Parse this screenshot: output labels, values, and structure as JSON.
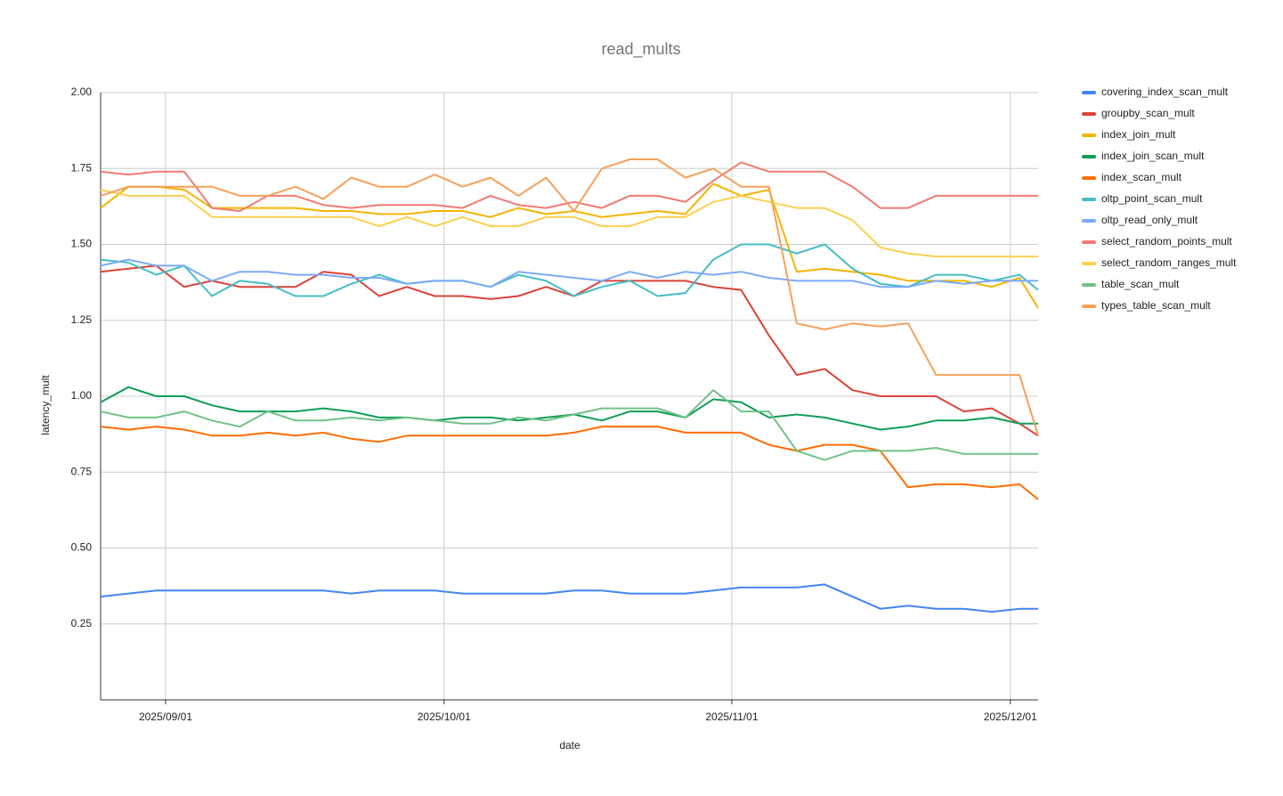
{
  "chart_data": {
    "type": "line",
    "title": "read_mults",
    "x_label": "date",
    "y_label": "latency_mult",
    "x": [
      "2025/08/25",
      "2025/08/28",
      "2025/08/31",
      "2025/09/03",
      "2025/09/06",
      "2025/09/09",
      "2025/09/12",
      "2025/09/15",
      "2025/09/18",
      "2025/09/21",
      "2025/09/24",
      "2025/09/27",
      "2025/09/30",
      "2025/10/03",
      "2025/10/06",
      "2025/10/09",
      "2025/10/12",
      "2025/10/15",
      "2025/10/18",
      "2025/10/21",
      "2025/10/24",
      "2025/10/27",
      "2025/10/30",
      "2025/11/02",
      "2025/11/05",
      "2025/11/08",
      "2025/11/11",
      "2025/11/14",
      "2025/11/17",
      "2025/11/20",
      "2025/11/23",
      "2025/11/26",
      "2025/11/29",
      "2025/12/02",
      "2025/12/04"
    ],
    "xlim": [
      "2025/08/25",
      "2025/12/04"
    ],
    "xticks": [
      "2025/09/01",
      "2025/10/01",
      "2025/11/01",
      "2025/12/01"
    ],
    "ylim": [
      0,
      2
    ],
    "yticks": [
      0.25,
      {
        "value": 0.5,
        "label": "0.50"
      },
      0.75,
      {
        "value": 1,
        "label": "1.00"
      },
      1.25,
      {
        "value": 1.5,
        "label": "1.50"
      },
      1.75,
      {
        "value": 2,
        "label": "2.00"
      }
    ],
    "grid": true,
    "legend": "right",
    "series": [
      {
        "name": "covering_index_scan_mult",
        "color": "#4285f4",
        "values": [
          0.34,
          0.35,
          0.36,
          0.36,
          0.36,
          0.36,
          0.36,
          0.36,
          0.36,
          0.35,
          0.36,
          0.36,
          0.36,
          0.35,
          0.35,
          0.35,
          0.35,
          0.36,
          0.36,
          0.35,
          0.35,
          0.35,
          0.36,
          0.37,
          0.37,
          0.37,
          0.38,
          0.34,
          0.3,
          0.31,
          0.3,
          0.3,
          0.29,
          0.3,
          0.3
        ]
      },
      {
        "name": "groupby_scan_mult",
        "color": "#db4437",
        "values": [
          1.41,
          1.42,
          1.43,
          1.36,
          1.38,
          1.36,
          1.36,
          1.36,
          1.41,
          1.4,
          1.33,
          1.36,
          1.33,
          1.33,
          1.32,
          1.33,
          1.36,
          1.33,
          1.38,
          1.38,
          1.38,
          1.38,
          1.36,
          1.35,
          1.2,
          1.07,
          1.09,
          1.02,
          1.0,
          1.0,
          1.0,
          0.95,
          0.96,
          0.91,
          0.87
        ]
      },
      {
        "name": "index_join_mult",
        "color": "#f4b400",
        "values": [
          1.62,
          1.69,
          1.69,
          1.68,
          1.62,
          1.62,
          1.62,
          1.62,
          1.61,
          1.61,
          1.6,
          1.6,
          1.61,
          1.61,
          1.59,
          1.62,
          1.6,
          1.61,
          1.59,
          1.6,
          1.61,
          1.6,
          1.7,
          1.66,
          1.68,
          1.41,
          1.42,
          1.41,
          1.4,
          1.38,
          1.38,
          1.38,
          1.36,
          1.39,
          1.29
        ]
      },
      {
        "name": "index_join_scan_mult",
        "color": "#0f9d58",
        "values": [
          0.98,
          1.03,
          1.0,
          1.0,
          0.97,
          0.95,
          0.95,
          0.95,
          0.96,
          0.95,
          0.93,
          0.93,
          0.92,
          0.93,
          0.93,
          0.92,
          0.93,
          0.94,
          0.92,
          0.95,
          0.95,
          0.93,
          0.99,
          0.98,
          0.93,
          0.94,
          0.93,
          0.91,
          0.89,
          0.9,
          0.92,
          0.92,
          0.93,
          0.91,
          0.91
        ]
      },
      {
        "name": "index_scan_mult",
        "color": "#ff6d01",
        "values": [
          0.9,
          0.89,
          0.9,
          0.89,
          0.87,
          0.87,
          0.88,
          0.87,
          0.88,
          0.86,
          0.85,
          0.87,
          0.87,
          0.87,
          0.87,
          0.87,
          0.87,
          0.88,
          0.9,
          0.9,
          0.9,
          0.88,
          0.88,
          0.88,
          0.84,
          0.82,
          0.84,
          0.84,
          0.82,
          0.7,
          0.71,
          0.71,
          0.7,
          0.71,
          0.66
        ]
      },
      {
        "name": "oltp_point_scan_mult",
        "color": "#46bdc6",
        "values": [
          1.45,
          1.44,
          1.4,
          1.43,
          1.33,
          1.38,
          1.37,
          1.33,
          1.33,
          1.37,
          1.4,
          1.37,
          1.38,
          1.38,
          1.36,
          1.4,
          1.38,
          1.33,
          1.36,
          1.38,
          1.33,
          1.34,
          1.45,
          1.5,
          1.5,
          1.47,
          1.5,
          1.42,
          1.37,
          1.36,
          1.4,
          1.4,
          1.38,
          1.4,
          1.35
        ]
      },
      {
        "name": "oltp_read_only_mult",
        "color": "#7baaf7",
        "values": [
          1.43,
          1.45,
          1.43,
          1.43,
          1.38,
          1.41,
          1.41,
          1.4,
          1.4,
          1.39,
          1.39,
          1.37,
          1.38,
          1.38,
          1.36,
          1.41,
          1.4,
          1.39,
          1.38,
          1.41,
          1.39,
          1.41,
          1.4,
          1.41,
          1.39,
          1.38,
          1.38,
          1.38,
          1.36,
          1.36,
          1.38,
          1.37,
          1.38,
          1.38,
          1.38
        ]
      },
      {
        "name": "select_random_points_mult",
        "color": "#f07b72",
        "values": [
          1.74,
          1.73,
          1.74,
          1.74,
          1.62,
          1.61,
          1.66,
          1.66,
          1.63,
          1.62,
          1.63,
          1.63,
          1.63,
          1.62,
          1.66,
          1.63,
          1.62,
          1.64,
          1.62,
          1.66,
          1.66,
          1.64,
          1.71,
          1.77,
          1.74,
          1.74,
          1.74,
          1.69,
          1.62,
          1.62,
          1.66,
          1.66,
          1.66,
          1.66,
          1.66
        ]
      },
      {
        "name": "select_random_ranges_mult",
        "color": "#fcd04f",
        "values": [
          1.68,
          1.66,
          1.66,
          1.66,
          1.59,
          1.59,
          1.59,
          1.59,
          1.59,
          1.59,
          1.56,
          1.59,
          1.56,
          1.59,
          1.56,
          1.56,
          1.59,
          1.59,
          1.56,
          1.56,
          1.59,
          1.59,
          1.64,
          1.66,
          1.64,
          1.62,
          1.62,
          1.58,
          1.49,
          1.47,
          1.46,
          1.46,
          1.46,
          1.46,
          1.46
        ]
      },
      {
        "name": "table_scan_mult",
        "color": "#71c287",
        "values": [
          0.95,
          0.93,
          0.93,
          0.95,
          0.92,
          0.9,
          0.95,
          0.92,
          0.92,
          0.93,
          0.92,
          0.93,
          0.92,
          0.91,
          0.91,
          0.93,
          0.92,
          0.94,
          0.96,
          0.96,
          0.96,
          0.93,
          1.02,
          0.95,
          0.95,
          0.82,
          0.79,
          0.82,
          0.82,
          0.82,
          0.83,
          0.81,
          0.81,
          0.81,
          0.81
        ]
      },
      {
        "name": "types_table_scan_mult",
        "color": "#f6a05a",
        "values": [
          1.66,
          1.69,
          1.69,
          1.69,
          1.69,
          1.66,
          1.66,
          1.69,
          1.65,
          1.72,
          1.69,
          1.69,
          1.73,
          1.69,
          1.72,
          1.66,
          1.72,
          1.61,
          1.75,
          1.78,
          1.78,
          1.72,
          1.75,
          1.69,
          1.69,
          1.24,
          1.22,
          1.24,
          1.23,
          1.24,
          1.07,
          1.07,
          1.07,
          1.07,
          0.87
        ]
      }
    ]
  }
}
